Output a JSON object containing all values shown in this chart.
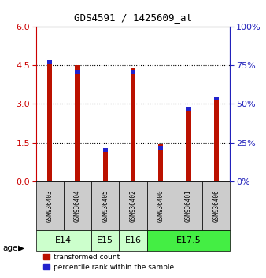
{
  "title": "GDS4591 / 1425609_at",
  "samples": [
    "GSM936403",
    "GSM936404",
    "GSM936405",
    "GSM936402",
    "GSM936400",
    "GSM936401",
    "GSM936406"
  ],
  "transformed_counts": [
    4.7,
    4.5,
    1.25,
    4.4,
    1.45,
    2.9,
    3.2
  ],
  "percentile_ranks": [
    78,
    72,
    22,
    72,
    23,
    48,
    55
  ],
  "age_group_spans": [
    2,
    1,
    1,
    3
  ],
  "age_group_labels": [
    "E14",
    "E15",
    "E16",
    "E17.5"
  ],
  "age_group_colors": [
    "#ccffcc",
    "#ccffcc",
    "#ccffcc",
    "#44ee44"
  ],
  "ylim_left": [
    0,
    6
  ],
  "yticks_left": [
    0,
    1.5,
    3,
    4.5,
    6
  ],
  "ylim_right": [
    0,
    100
  ],
  "yticks_right": [
    0,
    25,
    50,
    75,
    100
  ],
  "bar_color_red": "#bb1100",
  "bar_color_blue": "#2222cc",
  "bar_width": 0.18,
  "sample_bg_color": "#cccccc",
  "left_axis_color": "#cc0000",
  "right_axis_color": "#2222bb",
  "legend_red_label": "transformed count",
  "legend_blue_label": "percentile rank within the sample"
}
